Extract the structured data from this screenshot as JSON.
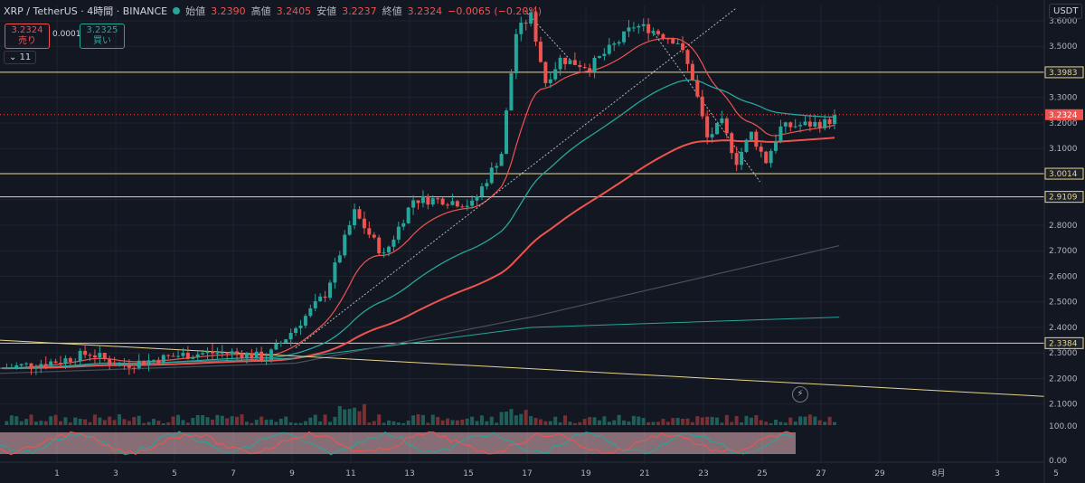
{
  "header": {
    "symbol": "XRP / TetherUS · 4時間 · BINANCE",
    "open_label": "始値",
    "open": "3.2390",
    "high_label": "高値",
    "high": "3.2405",
    "low_label": "安値",
    "low": "3.2237",
    "close_label": "終値",
    "close": "3.2324",
    "change": "−0.0065 (−0.20%)"
  },
  "trade": {
    "sell_price": "3.2324",
    "sell_label": "売り",
    "spread": "0.0001",
    "buy_price": "3.2325",
    "buy_label": "買い"
  },
  "indicator_count": "11",
  "currency": "USDT",
  "colors": {
    "up": "#26a69a",
    "down": "#ef5350",
    "level": "#e6d48a",
    "ema_teal": "#26a69a",
    "ema_red": "#ef5350",
    "rsi_band": "#e8b4bc"
  },
  "chart_data": {
    "type": "candlestick",
    "price_axis": {
      "ylim": [
        2.06,
        3.66
      ],
      "ticks": [
        "3.6000",
        "3.5000",
        "3.4000",
        "3.3000",
        "3.2000",
        "3.1000",
        "3.0000",
        "2.9000",
        "2.8000",
        "2.7000",
        "2.6000",
        "2.5000",
        "2.4000",
        "2.3000",
        "2.2000",
        "2.1000"
      ]
    },
    "x_ticks": [
      "1",
      "3",
      "5",
      "7",
      "9",
      "11",
      "13",
      "15",
      "17",
      "19",
      "21",
      "23",
      "25",
      "27",
      "29",
      "8月",
      "3",
      "5"
    ],
    "level_labels": [
      {
        "price": 3.3983,
        "text": "3.3983"
      },
      {
        "price": 3.2324,
        "text": "3.2324"
      },
      {
        "price": 3.0014,
        "text": "3.0014"
      },
      {
        "price": 2.9109,
        "text": "2.9109"
      },
      {
        "price": 2.3384,
        "text": "2.3384"
      }
    ],
    "horizontal_levels": [
      3.3983,
      3.0014,
      2.9109,
      2.3384
    ],
    "close_path": [
      [
        0,
        2.24
      ],
      [
        2,
        2.27
      ],
      [
        3,
        2.3
      ],
      [
        4,
        2.25
      ],
      [
        5,
        2.27
      ],
      [
        6,
        2.29
      ],
      [
        7,
        2.3
      ],
      [
        8,
        2.3
      ],
      [
        9,
        2.28
      ],
      [
        10,
        2.4
      ],
      [
        11,
        2.53
      ],
      [
        12,
        2.85
      ],
      [
        13,
        2.68
      ],
      [
        14,
        2.9
      ],
      [
        15,
        2.9
      ],
      [
        16,
        2.88
      ],
      [
        17,
        3.08
      ],
      [
        17.5,
        3.55
      ],
      [
        18,
        3.62
      ],
      [
        18.5,
        3.36
      ],
      [
        19,
        3.45
      ],
      [
        20,
        3.42
      ],
      [
        21,
        3.52
      ],
      [
        21.5,
        3.58
      ],
      [
        22,
        3.57
      ],
      [
        23,
        3.52
      ],
      [
        23.5,
        3.38
      ],
      [
        24,
        3.14
      ],
      [
        24.5,
        3.2
      ],
      [
        25,
        3.05
      ],
      [
        25.5,
        3.16
      ],
      [
        26,
        3.05
      ],
      [
        26.5,
        3.18
      ],
      [
        27,
        3.19
      ],
      [
        28,
        3.2
      ],
      [
        28.5,
        3.23
      ]
    ],
    "volume_axis": {
      "ylim": [
        0,
        100
      ],
      "ticks": [
        "100.00",
        "0.00"
      ]
    }
  }
}
